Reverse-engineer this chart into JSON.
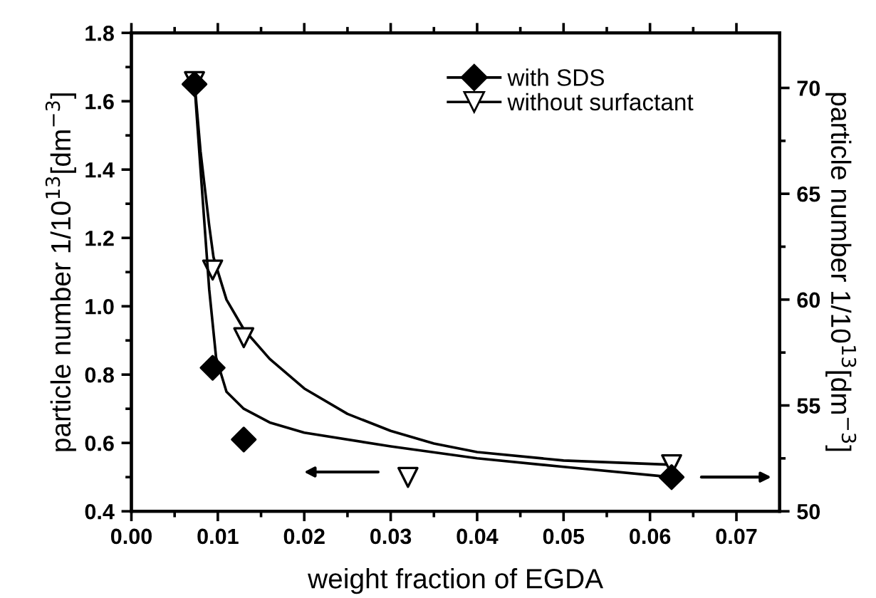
{
  "chart_data": {
    "type": "scatter",
    "xlabel": "weight fraction of EGDA",
    "ylabel": "particle number 1/10$^{13}$[dm$^{−3}$]",
    "y2label": "particle number 1/10$^{13}$[dm$^{−3}$]",
    "xlim": [
      0.0,
      0.075
    ],
    "xticks": [
      {
        "value": 0.0,
        "label": "0.00"
      },
      {
        "value": 0.01,
        "label": "0.01"
      },
      {
        "value": 0.02,
        "label": "0.02"
      },
      {
        "value": 0.03,
        "label": "0.03"
      },
      {
        "value": 0.04,
        "label": "0.04"
      },
      {
        "value": 0.05,
        "label": "0.05"
      },
      {
        "value": 0.06,
        "label": "0.06"
      },
      {
        "value": 0.07,
        "label": "0.07"
      }
    ],
    "ylim": [
      0.4,
      1.8
    ],
    "yticks": [
      {
        "value": 0.4,
        "label": "0.4"
      },
      {
        "value": 0.6,
        "label": "0.6"
      },
      {
        "value": 0.8,
        "label": "0.8"
      },
      {
        "value": 1.0,
        "label": "1.0"
      },
      {
        "value": 1.2,
        "label": "1.2"
      },
      {
        "value": 1.4,
        "label": "1.4"
      },
      {
        "value": 1.6,
        "label": "1.6"
      },
      {
        "value": 1.8,
        "label": "1.8"
      }
    ],
    "y2lim": [
      50,
      72.6
    ],
    "y2ticks": [
      50,
      55,
      60,
      65,
      70
    ],
    "legend": "top right",
    "grid": false,
    "series": [
      {
        "name": "with SDS",
        "marker": "diamond",
        "color": "#000000",
        "x": [
          0.0073,
          0.0094,
          0.013,
          0.0625
        ],
        "values": [
          1.65,
          0.82,
          0.61,
          0.5
        ]
      },
      {
        "name": "without surfactant",
        "marker": "triangle",
        "color": "#000000",
        "axis": "y2",
        "x": [
          0.0073,
          0.0094,
          0.013,
          0.032,
          0.0625
        ],
        "values": [
          70.3,
          61.4,
          58.2,
          51.6,
          52.2
        ]
      },
      {
        "type": "line",
        "marker": "none",
        "line_style": "solid",
        "color": "#000000",
        "x": [
          0.0073,
          0.008,
          0.009,
          0.0098,
          0.011,
          0.013,
          0.016,
          0.02,
          0.03,
          0.04,
          0.05,
          0.0625
        ],
        "values": [
          1.65,
          1.4,
          1.05,
          0.85,
          0.75,
          0.7,
          0.66,
          0.63,
          0.59,
          0.555,
          0.53,
          0.5
        ]
      },
      {
        "type": "line",
        "marker": "none",
        "line_style": "solid",
        "color": "#000000",
        "axis": "y2",
        "x": [
          0.0073,
          0.008,
          0.009,
          0.0095,
          0.011,
          0.013,
          0.016,
          0.02,
          0.025,
          0.03,
          0.035,
          0.04,
          0.05,
          0.0625
        ],
        "values": [
          70.3,
          67,
          63.5,
          62,
          60,
          58.6,
          57.2,
          55.8,
          54.6,
          53.8,
          53.2,
          52.8,
          52.4,
          52.2
        ]
      }
    ]
  }
}
